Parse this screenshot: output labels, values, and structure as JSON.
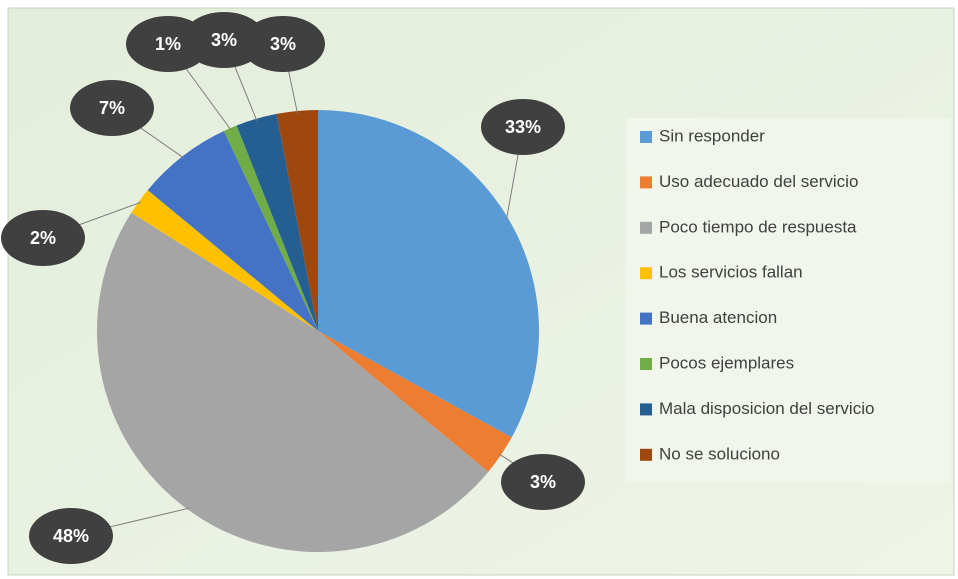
{
  "chart_data": {
    "type": "pie",
    "categories": [
      "Sin responder",
      "Uso adecuado del servicio",
      "Poco tiempo de respuesta",
      "Los servicios fallan",
      "Buena atencion",
      "Pocos ejemplares",
      "Mala disposicion del servicio",
      "No se soluciono"
    ],
    "values": [
      33,
      3,
      48,
      2,
      7,
      1,
      3,
      3
    ],
    "value_labels": [
      "33%",
      "3%",
      "48%",
      "2%",
      "7%",
      "1%",
      "3%",
      "3%"
    ],
    "colors": [
      "#5b9bd5",
      "#ed7d31",
      "#a5a5a5",
      "#ffc000",
      "#4472c4",
      "#70ad47",
      "#255e91",
      "#9e480e"
    ],
    "legend": "right"
  }
}
